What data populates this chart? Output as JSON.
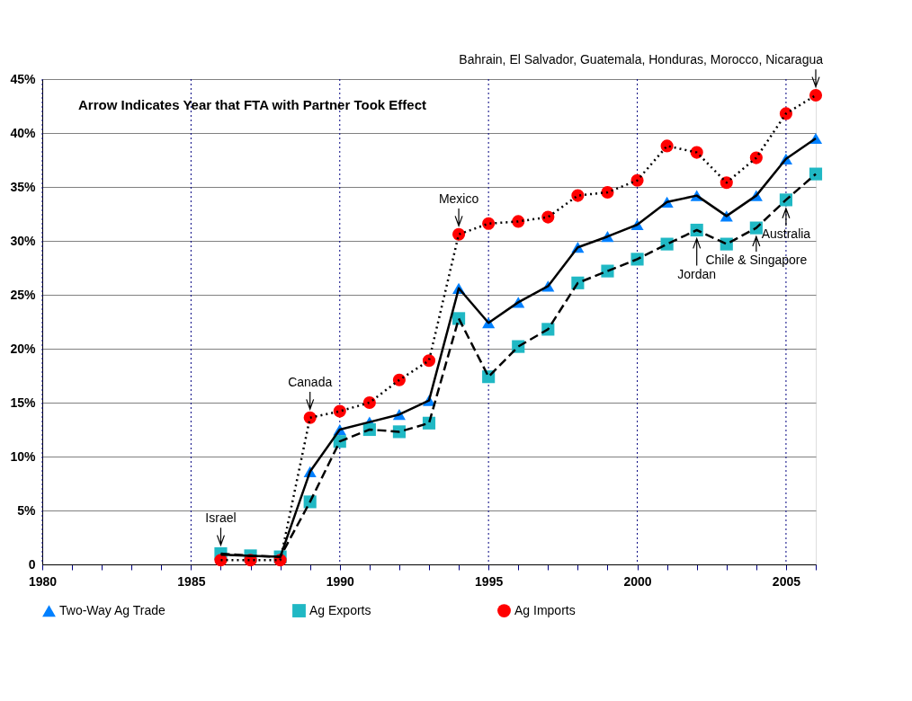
{
  "chart_data": {
    "type": "line",
    "x": [
      1986,
      1987,
      1988,
      1989,
      1990,
      1991,
      1992,
      1993,
      1994,
      1995,
      1996,
      1997,
      1998,
      1999,
      2000,
      2001,
      2002,
      2003,
      2004,
      2005,
      2006
    ],
    "series": [
      {
        "name": "Two-Way Ag Trade",
        "color": "#0080ff",
        "marker": "triangle",
        "line_style": "solid",
        "values": [
          0.9,
          0.8,
          0.7,
          8.6,
          12.5,
          13.2,
          13.9,
          15.2,
          25.6,
          22.4,
          24.3,
          25.8,
          29.4,
          30.4,
          31.5,
          33.6,
          34.2,
          32.3,
          34.2,
          37.6,
          39.5
        ]
      },
      {
        "name": "Ag Exports",
        "color": "#20b8c4",
        "marker": "square",
        "line_style": "dashed",
        "values": [
          1.0,
          0.8,
          0.7,
          5.8,
          11.4,
          12.5,
          12.3,
          13.1,
          22.8,
          17.4,
          20.2,
          21.8,
          26.1,
          27.2,
          28.3,
          29.7,
          31.0,
          29.7,
          31.2,
          33.8,
          36.2
        ]
      },
      {
        "name": "Ag Imports",
        "color": "#ff0000",
        "marker": "circle",
        "line_style": "dotted",
        "values": [
          0.4,
          0.4,
          0.4,
          13.6,
          14.2,
          15.0,
          17.1,
          18.9,
          30.6,
          31.6,
          31.8,
          32.2,
          34.2,
          34.5,
          35.6,
          38.8,
          38.2,
          35.4,
          37.7,
          41.8,
          43.5
        ]
      }
    ],
    "xlim": [
      1980,
      2006
    ],
    "xticks": [
      1980,
      {
        "value": 1981,
        "label": null
      },
      {
        "value": 1982,
        "label": null
      },
      {
        "value": 1983,
        "label": null
      },
      {
        "value": 1984,
        "label": null
      },
      1985,
      {
        "value": 1986,
        "label": null
      },
      {
        "value": 1987,
        "label": null
      },
      {
        "value": 1988,
        "label": null
      },
      {
        "value": 1989,
        "label": null
      },
      1990,
      {
        "value": 1991,
        "label": null
      },
      {
        "value": 1992,
        "label": null
      },
      {
        "value": 1993,
        "label": null
      },
      {
        "value": 1994,
        "label": null
      },
      1995,
      {
        "value": 1996,
        "label": null
      },
      {
        "value": 1997,
        "label": null
      },
      {
        "value": 1998,
        "label": null
      },
      {
        "value": 1999,
        "label": null
      },
      2000,
      {
        "value": 2001,
        "label": null
      },
      {
        "value": 2002,
        "label": null
      },
      {
        "value": 2003,
        "label": null
      },
      {
        "value": 2004,
        "label": null
      },
      2005,
      {
        "value": 2006,
        "label": null
      }
    ],
    "ylim": [
      0,
      45
    ],
    "yticks": [
      0,
      {
        "value": 5,
        "label": "5%"
      },
      {
        "value": 10,
        "label": "10%"
      },
      {
        "value": 15,
        "label": "15%"
      },
      {
        "value": 20,
        "label": "20%"
      },
      {
        "value": 25,
        "label": "25%"
      },
      {
        "value": 30,
        "label": "30%"
      },
      {
        "value": 35,
        "label": "35%"
      },
      {
        "value": 40,
        "label": "40%"
      },
      {
        "value": 45,
        "label": "45%"
      }
    ],
    "grid": true,
    "legend": "bottom",
    "annotations": [
      "Arrow Indicates Year that FTA with Partner Took Effect",
      {
        "text": "Israel",
        "x": 1986,
        "y": 1.0
      },
      {
        "text": "Canada",
        "x": 1989,
        "y": 13.6
      },
      {
        "text": "Mexico",
        "x": 1994,
        "y": 30.6
      },
      {
        "text": "Bahrain, El Salvador, Guatemala, Honduras, Morocco, Nicaragua",
        "x": 2006,
        "y": 43.5
      },
      {
        "text": "Jordan",
        "x": 2002,
        "y": 31.0
      },
      {
        "text": "Chile & Singapore",
        "x": 2004,
        "y": 31.2
      },
      {
        "text": "Australia",
        "x": 2005,
        "y": 33.8
      }
    ]
  }
}
